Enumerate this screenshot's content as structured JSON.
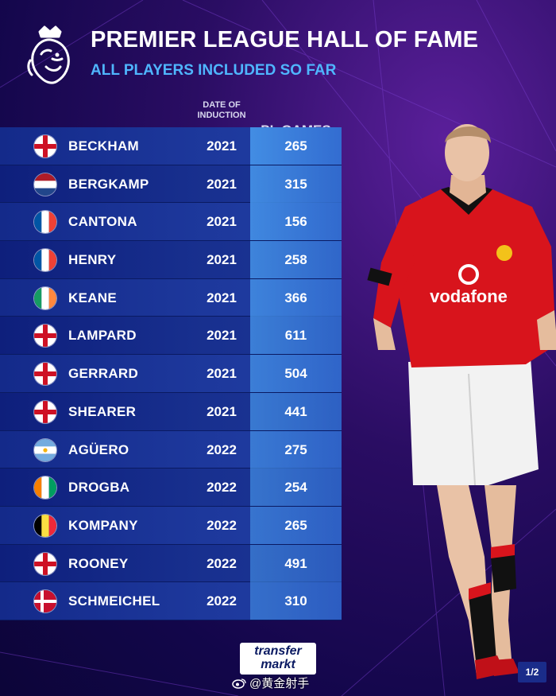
{
  "header": {
    "title": "PREMIER LEAGUE HALL OF FAME",
    "subtitle": "ALL PLAYERS INCLUDED SO FAR",
    "logo": "premier-league-lion-icon"
  },
  "columns": {
    "induction_line1": "DATE OF",
    "induction_line2": "INDUCTION",
    "games": "PL GAMES"
  },
  "players": [
    {
      "name": "BECKHAM",
      "year": "2021",
      "games": "265",
      "games_value": 265,
      "flag": "england"
    },
    {
      "name": "BERGKAMP",
      "year": "2021",
      "games": "315",
      "games_value": 315,
      "flag": "netherlands"
    },
    {
      "name": "CANTONA",
      "year": "2021",
      "games": "156",
      "games_value": 156,
      "flag": "france"
    },
    {
      "name": "HENRY",
      "year": "2021",
      "games": "258",
      "games_value": 258,
      "flag": "france"
    },
    {
      "name": "KEANE",
      "year": "2021",
      "games": "366",
      "games_value": 366,
      "flag": "ireland"
    },
    {
      "name": "LAMPARD",
      "year": "2021",
      "games": "611",
      "games_value": 611,
      "flag": "england"
    },
    {
      "name": "GERRARD",
      "year": "2021",
      "games": "504",
      "games_value": 504,
      "flag": "england"
    },
    {
      "name": "SHEARER",
      "year": "2021",
      "games": "441",
      "games_value": 441,
      "flag": "england"
    },
    {
      "name": "AGÜERO",
      "year": "2022",
      "games": "275",
      "games_value": 275,
      "flag": "argentina"
    },
    {
      "name": "DROGBA",
      "year": "2022",
      "games": "254",
      "games_value": 254,
      "flag": "ivory-coast"
    },
    {
      "name": "KOMPANY",
      "year": "2022",
      "games": "265",
      "games_value": 265,
      "flag": "belgium"
    },
    {
      "name": "ROONEY",
      "year": "2022",
      "games": "491",
      "games_value": 491,
      "flag": "england"
    },
    {
      "name": "SCHMEICHEL",
      "year": "2022",
      "games": "310",
      "games_value": 310,
      "flag": "denmark"
    }
  ],
  "footer": {
    "brand_line1": "transfer",
    "brand_line2": "markt",
    "watermark": "@黄金射手",
    "page": "1/2"
  },
  "photo": {
    "description_icon": "player-photo",
    "shirt_sponsor": "vodafone"
  },
  "colors": {
    "accent_blue": "#4fb6ff",
    "background": "#2a0d63",
    "shirt_red": "#d8141c"
  }
}
